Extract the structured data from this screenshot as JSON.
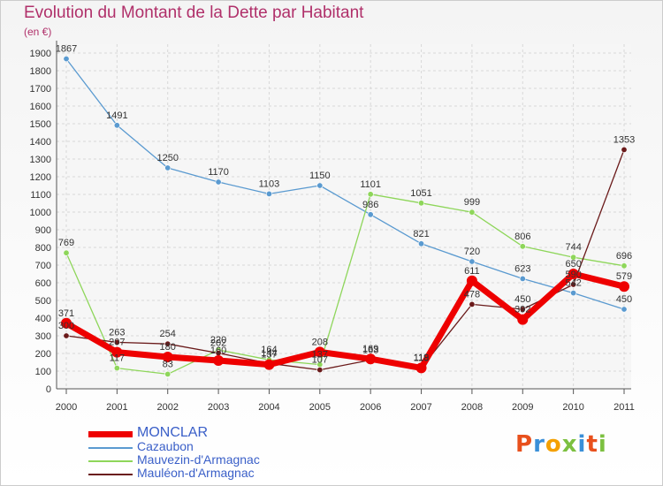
{
  "header": {
    "title": "Evolution du Montant de la Dette par Habitant",
    "unit": "(en €)"
  },
  "logo": {
    "text": "Proxiti",
    "colors": [
      "#e8501c",
      "#3a8fd8",
      "#f4a000",
      "#7cc040",
      "#3a8fd8",
      "#e8501c",
      "#7cc040"
    ]
  },
  "chart_data": {
    "type": "line",
    "title": "Evolution du Montant de la Dette par Habitant",
    "ylabel": "(en €)",
    "xlabel": "",
    "ylim": [
      0,
      1950
    ],
    "yticks": [
      0,
      100,
      200,
      300,
      400,
      500,
      600,
      700,
      800,
      900,
      1000,
      1100,
      1200,
      1300,
      1400,
      1500,
      1600,
      1700,
      1800,
      1900
    ],
    "x": [
      "2000",
      "2001",
      "2002",
      "2003",
      "2004",
      "2005",
      "2006",
      "2007",
      "2008",
      "2009",
      "2010",
      "2011"
    ],
    "grid": true,
    "legend_position": "bottom-left",
    "series": [
      {
        "name": "MONCLAR",
        "color": "#ee0000",
        "values": [
          371,
          207,
          180,
          160,
          137,
          208,
          169,
          118,
          611,
          392,
          650,
          579
        ],
        "labels": [
          "371",
          "207",
          "180",
          "160",
          "137",
          "208",
          "169",
          "118",
          "611",
          "392",
          "650",
          "579"
        ]
      },
      {
        "name": "Cazaubon",
        "color": "#5a9ad0",
        "values": [
          1867,
          1491,
          1250,
          1170,
          1103,
          1150,
          986,
          821,
          720,
          623,
          542,
          450
        ],
        "labels": [
          "1867",
          "1491",
          "1250",
          "1170",
          "1103",
          "1150",
          "986",
          "821",
          "720",
          "623",
          "542",
          "450"
        ]
      },
      {
        "name": "Mauvezin-d'Armagnac",
        "color": "#8ed65a",
        "values": [
          769,
          117,
          83,
          220,
          164,
          137,
          1101,
          1051,
          999,
          806,
          744,
          696
        ],
        "labels": [
          "769",
          "117",
          "83",
          "220",
          "164",
          "137",
          "1101",
          "1051",
          "999",
          "806",
          "744",
          "696"
        ]
      },
      {
        "name": "Mauléon-d'Armagnac",
        "color": "#6a1a1a",
        "values": [
          300,
          263,
          254,
          202,
          144,
          107,
          163,
          119,
          478,
          450,
          590,
          1353
        ],
        "labels": [
          "300",
          "263",
          "254",
          "202",
          "144",
          "107",
          "163",
          "119",
          "478",
          "450",
          "590",
          "1353"
        ]
      }
    ]
  }
}
